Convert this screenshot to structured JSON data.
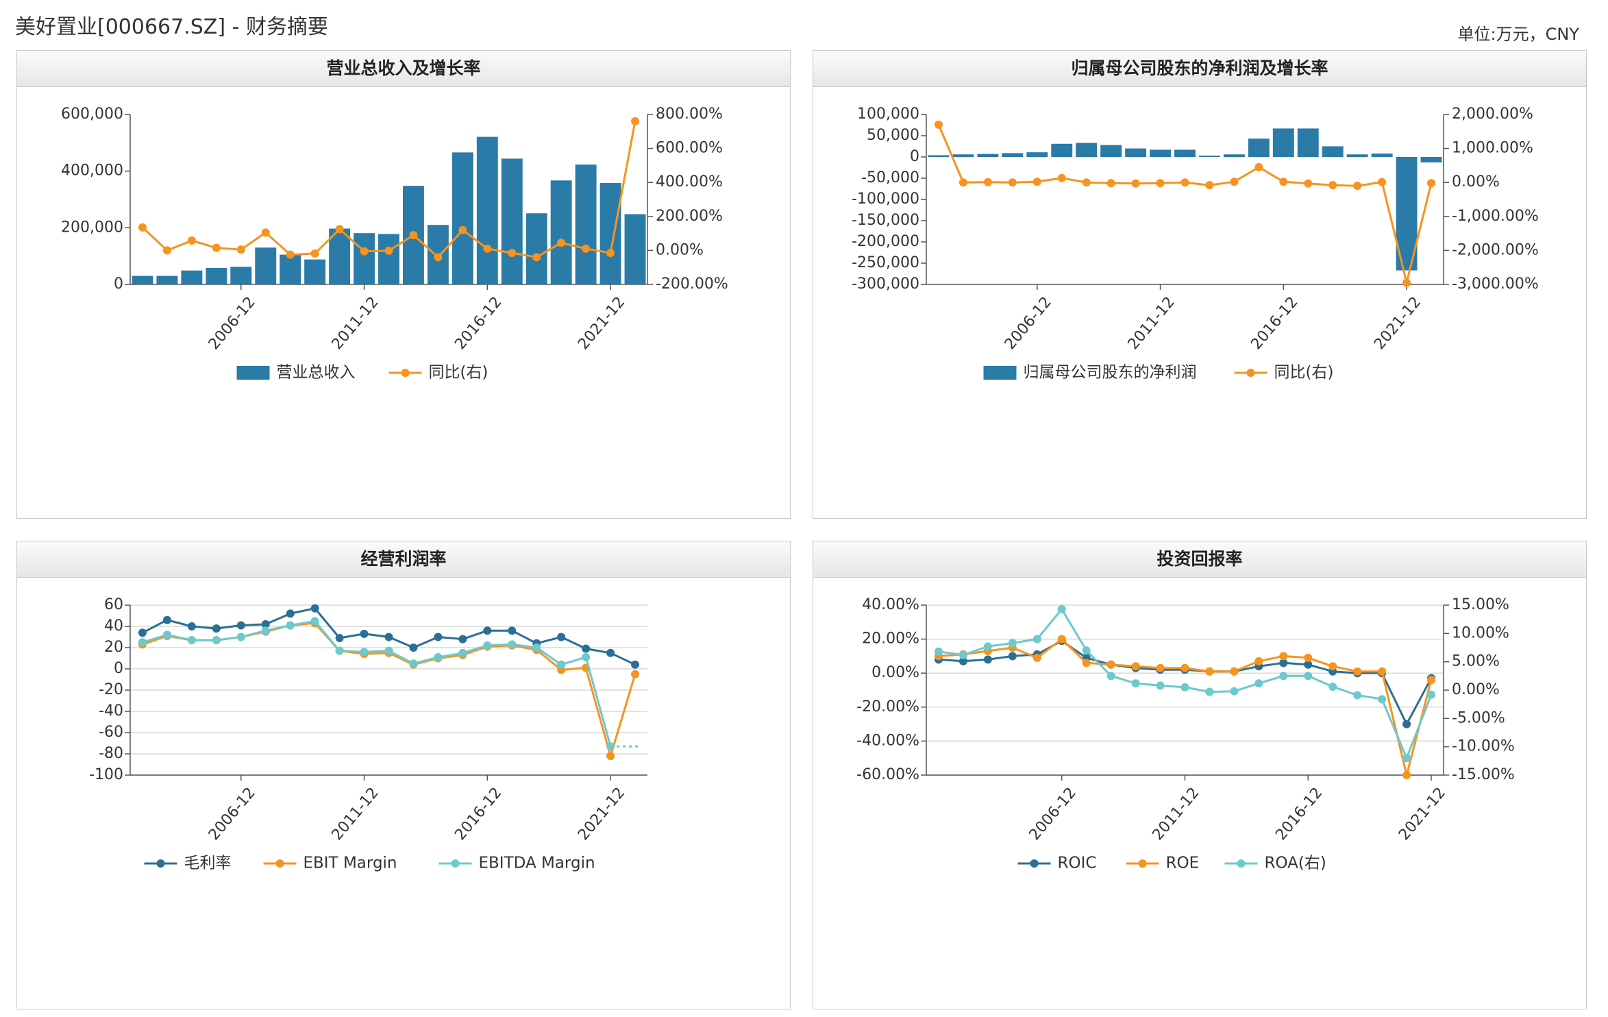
{
  "page": {
    "title": "美好置业[000667.SZ] - 财务摘要",
    "unit": "单位:万元，CNY"
  },
  "colors": {
    "bar": "#2a7ba8",
    "orange": "#f7931e",
    "darkblue": "#2a6f95",
    "teal": "#6cc9cc"
  },
  "chart_data": [
    {
      "id": "revenue",
      "type": "bar",
      "title": "营业总收入及增长率",
      "x_tick_labels": [
        "2006-12",
        "2011-12",
        "2016-12",
        "2021-12"
      ],
      "tick_index": [
        4,
        9,
        14,
        19
      ],
      "y_left": {
        "ticks": [
          0,
          200000,
          400000,
          600000
        ],
        "labels": [
          "0",
          "200,000",
          "400,000",
          "600,000"
        ],
        "range": [
          0,
          600000
        ]
      },
      "y_right": {
        "ticks": [
          -200,
          0,
          200,
          400,
          600,
          800
        ],
        "labels": [
          "-200.00%",
          "0.00%",
          "200.00%",
          "400.00%",
          "600.00%",
          "800.00%"
        ],
        "range": [
          -200,
          800
        ]
      },
      "series": [
        {
          "name": "营业总收入",
          "type": "bar",
          "axis": "left",
          "values": [
            30000,
            30000,
            49000,
            58000,
            62000,
            130000,
            105000,
            88000,
            197000,
            181000,
            178000,
            348000,
            210000,
            466000,
            521000,
            444000,
            251000,
            367000,
            423000,
            358000,
            248000
          ]
        },
        {
          "name": "同比(右)",
          "type": "line",
          "axis": "right",
          "values": [
            135,
            0,
            58,
            15,
            5,
            105,
            -25,
            -18,
            125,
            -5,
            -2,
            90,
            -40,
            120,
            10,
            -15,
            -40,
            45,
            10,
            -15,
            760
          ]
        }
      ]
    },
    {
      "id": "net-profit",
      "type": "bar",
      "title": "归属母公司股东的净利润及增长率",
      "x_tick_labels": [
        "2006-12",
        "2011-12",
        "2016-12",
        "2021-12"
      ],
      "tick_index": [
        4,
        9,
        14,
        19
      ],
      "y_left": {
        "ticks": [
          -300000,
          -250000,
          -200000,
          -150000,
          -100000,
          -50000,
          0,
          50000,
          100000
        ],
        "labels": [
          "-300,000",
          "-250,000",
          "-200,000",
          "-150,000",
          "-100,000",
          "-50,000",
          "0",
          "50,000",
          "100,000"
        ],
        "range": [
          -300000,
          100000
        ]
      },
      "y_right": {
        "ticks": [
          -3000,
          -2000,
          -1000,
          0,
          1000,
          2000
        ],
        "labels": [
          "-3,000.00%",
          "-2,000.00%",
          "-1,000.00%",
          "0.00%",
          "1,000.00%",
          "2,000.00%"
        ],
        "range": [
          -3000,
          2000
        ]
      },
      "series": [
        {
          "name": "归属母公司股东的净利润",
          "type": "bar",
          "axis": "left",
          "values": [
            4000,
            6000,
            7000,
            9000,
            11000,
            31000,
            33000,
            28000,
            20000,
            17000,
            17000,
            3000,
            6000,
            43000,
            67000,
            67000,
            25000,
            6000,
            8000,
            -267000,
            -13000
          ]
        },
        {
          "name": "同比(右)",
          "type": "line",
          "axis": "right",
          "values": [
            1700,
            0,
            10,
            0,
            20,
            130,
            0,
            -20,
            -30,
            -20,
            0,
            -80,
            20,
            450,
            20,
            -30,
            -80,
            -100,
            10,
            -2950,
            -20
          ]
        }
      ]
    },
    {
      "id": "operating-margin",
      "type": "line",
      "title": "经营利润率",
      "x_tick_labels": [
        "2006-12",
        "2011-12",
        "2016-12",
        "2021-12"
      ],
      "tick_index": [
        4,
        9,
        14,
        19
      ],
      "y_left": {
        "ticks": [
          -100,
          -80,
          -60,
          -40,
          -20,
          0,
          20,
          40,
          60
        ],
        "labels": [
          "-100",
          "-80",
          "-60",
          "-40",
          "-20",
          "0",
          "20",
          "40",
          "60"
        ],
        "range": [
          -100,
          60
        ]
      },
      "series": [
        {
          "name": "毛利率",
          "color_key": "darkblue",
          "values": [
            34,
            46,
            40,
            38,
            41,
            42,
            52,
            57,
            29,
            33,
            30,
            20,
            30,
            28,
            36,
            36,
            24,
            30,
            19,
            15,
            4
          ]
        },
        {
          "name": "EBIT Margin",
          "color_key": "orange",
          "values": [
            23,
            31,
            27,
            27,
            30,
            35,
            41,
            43,
            17,
            14,
            15,
            4,
            10,
            13,
            21,
            22,
            18,
            -1,
            1,
            -82,
            -5
          ]
        },
        {
          "name": "EBITDA Margin",
          "color_key": "teal",
          "values": [
            25,
            32,
            27,
            27,
            30,
            36,
            41,
            45,
            17,
            16,
            17,
            5,
            11,
            15,
            22,
            23,
            20,
            4,
            11,
            -73,
            null
          ]
        }
      ]
    },
    {
      "id": "roi",
      "type": "line",
      "title": "投资回报率",
      "x_tick_labels": [
        "2006-12",
        "2011-12",
        "2016-12",
        "2021-12"
      ],
      "tick_index": [
        5,
        10,
        15,
        20
      ],
      "y_left": {
        "ticks": [
          -60,
          -40,
          -20,
          0,
          20,
          40
        ],
        "labels": [
          "-60.00%",
          "-40.00%",
          "-20.00%",
          "0.00%",
          "20.00%",
          "40.00%"
        ],
        "range": [
          -60,
          40
        ]
      },
      "y_right": {
        "ticks": [
          -15,
          -10,
          -5,
          0,
          5,
          10,
          15
        ],
        "labels": [
          "-15.00%",
          "-10.00%",
          "-5.00%",
          "0.00%",
          "5.00%",
          "10.00%",
          "15.00%"
        ],
        "range": [
          -15,
          15
        ]
      },
      "series": [
        {
          "name": "ROIC",
          "axis": "left",
          "color_key": "darkblue",
          "values": [
            8,
            7,
            8,
            10,
            11,
            19,
            9,
            5,
            3,
            2,
            2,
            1,
            1,
            4,
            6,
            5,
            1,
            0,
            0,
            -30,
            -3
          ]
        },
        {
          "name": "ROE",
          "axis": "left",
          "color_key": "orange",
          "values": [
            10,
            11,
            13,
            15,
            9,
            20,
            6,
            5,
            4,
            3,
            3,
            1,
            1,
            7,
            10,
            9,
            4,
            1,
            1,
            -60,
            -4
          ]
        },
        {
          "name": "ROA(右)",
          "axis": "right",
          "color_key": "teal",
          "values": [
            6.8,
            6.2,
            7.7,
            8.3,
            9,
            14.3,
            7,
            2.5,
            1.2,
            0.8,
            0.5,
            -0.3,
            -0.2,
            1.2,
            2.5,
            2.5,
            0.6,
            -0.9,
            -1.6,
            -12.0,
            -0.8
          ]
        }
      ]
    }
  ]
}
